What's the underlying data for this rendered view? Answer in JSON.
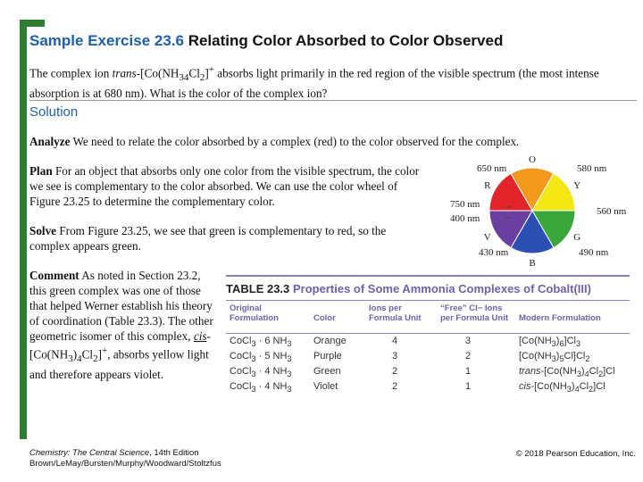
{
  "title": {
    "number": "Sample Exercise 23.6",
    "name": "Relating Color Absorbed to Color Observed"
  },
  "problem": {
    "text_1": "The complex ion ",
    "trans_word": "trans",
    "text_2": "-[Co(NH",
    "sub_3": "3",
    "sub_4": "4",
    "text_3": "Cl",
    "sub_2": "2",
    "text_4": "]",
    "sup_plus": "+",
    "text_5": " absorbs light primarily in the red region of the visible spectrum (the most intense absorption is at 680 nm). What is the color of the complex ion?"
  },
  "solution": {
    "header": "Solution",
    "analyze_label": "Analyze",
    "analyze_text": " We need to relate the color absorbed by a complex (red) to the color observed for the complex.",
    "plan_label": "Plan",
    "plan_text": " For an object that absorbs only one color from the visible spectrum, the color we see is complementary to the color absorbed. We can use the color wheel of Figure 23.25 to determine the complementary color.",
    "solve_label": "Solve",
    "solve_text": " From Figure 23.25, we see that green is complementary to red, so the complex appears green.",
    "comment_label": "Comment",
    "comment_text_1": " As noted in Section 23.2, this green complex was one of those that helped Werner establish his theory of coordination (Table 23.3). The other geometric isomer of this complex, ",
    "comment_cis": "cis",
    "comment_text_2": "-[Co(NH",
    "comment_sub3": "3",
    "comment_sub4": "4",
    "comment_text_3": "Cl",
    "comment_sub2": "2",
    "comment_text_4": "]",
    "comment_sup": "+",
    "comment_text_5": ", absorbs yellow light and therefore appears violet."
  },
  "color_wheel": {
    "segments": [
      {
        "letter": "O",
        "color": "#f39a1e"
      },
      {
        "letter": "Y",
        "color": "#f5e616"
      },
      {
        "letter": "G",
        "color": "#3aa63c"
      },
      {
        "letter": "B",
        "color": "#2c4fb4"
      },
      {
        "letter": "V",
        "color": "#6a3fa0"
      },
      {
        "letter": "R",
        "color": "#e2252b"
      }
    ],
    "wavelengths": [
      "650 nm",
      "580 nm",
      "750 nm",
      "400 nm",
      "560 nm",
      "430 nm",
      "490 nm"
    ]
  },
  "table": {
    "label": "TABLE 23.3",
    "caption": "Properties of Some Ammonia Complexes of Cobalt(III)",
    "headers": [
      "Original Formulation",
      "Color",
      "Ions per Formula Unit",
      "“Free” Cl− Ions per Formula Unit",
      "Modern Formulation"
    ],
    "rows": [
      {
        "formula": "CoCl3 · 6 NH3",
        "color": "Orange",
        "ions": "4",
        "free": "3",
        "modern": "[Co(NH3)6]Cl3"
      },
      {
        "formula": "CoCl3 · 5 NH3",
        "color": "Purple",
        "ions": "3",
        "free": "2",
        "modern": "[Co(NH3)5Cl]Cl2"
      },
      {
        "formula": "CoCl3 · 4 NH3",
        "color": "Green",
        "ions": "2",
        "free": "1",
        "modern": "trans-[Co(NH3)4Cl2]Cl"
      },
      {
        "formula": "CoCl3 · 4 NH3",
        "color": "Violet",
        "ions": "2",
        "free": "1",
        "modern": "cis-[Co(NH3)4Cl2]Cl"
      }
    ]
  },
  "footer": {
    "book_title": "Chemistry: The Central Science",
    "edition": ", 14th Edition",
    "authors": "Brown/LeMay/Bursten/Murphy/Woodward/Stoltzfus",
    "copyright": "© 2018 Pearson Education, Inc."
  }
}
